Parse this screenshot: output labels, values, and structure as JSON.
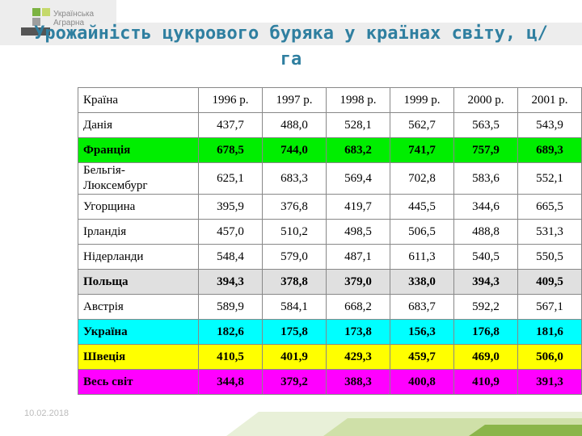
{
  "header": {
    "logo_lines": [
      "Українська",
      "Аграрна"
    ],
    "title": "Урожайність цукрового буряка у країнах світу, ц/га"
  },
  "table": {
    "header": [
      "Країна",
      "1996 р.",
      "1997 р.",
      "1998 р.",
      "1999 р.",
      "2000 р.",
      "2001 р."
    ],
    "rows": [
      {
        "cells": [
          "Данія",
          "437,7",
          "488,0",
          "528,1",
          "562,7",
          "563,5",
          "543,9"
        ]
      },
      {
        "cells": [
          "Франція",
          "678,5",
          "744,0",
          "683,2",
          "741,7",
          "757,9",
          "689,3"
        ],
        "fill": "#00ee00"
      },
      {
        "cells": [
          "Бельгія-\nЛюксембург",
          "625,1",
          "683,3",
          "569,4",
          "702,8",
          "583,6",
          "552,1"
        ]
      },
      {
        "cells": [
          "Угорщина",
          "395,9",
          "376,8",
          "419,7",
          "445,5",
          "344,6",
          "665,5"
        ]
      },
      {
        "cells": [
          "Ірландія",
          "457,0",
          "510,2",
          "498,5",
          "506,5",
          "488,8",
          "531,3"
        ]
      },
      {
        "cells": [
          "Нідерланди",
          "548,4",
          "579,0",
          "487,1",
          "611,3",
          "540,5",
          "550,5"
        ]
      },
      {
        "cells": [
          "Польща",
          "394,3",
          "378,8",
          "379,0",
          "338,0",
          "394,3",
          "409,5"
        ],
        "fill": "#e0e0e0"
      },
      {
        "cells": [
          "Австрія",
          "589,9",
          "584,1",
          "668,2",
          "683,7",
          "592,2",
          "567,1"
        ]
      },
      {
        "cells": [
          "Україна",
          "182,6",
          "175,8",
          "173,8",
          "156,3",
          "176,8",
          "181,6"
        ],
        "fill": "#00ffff"
      },
      {
        "cells": [
          "Швеція",
          "410,5",
          "401,9",
          "429,3",
          "459,7",
          "469,0",
          "506,0"
        ],
        "fill": "#ffff00"
      },
      {
        "cells": [
          "Весь світ",
          "344,8",
          "379,2",
          "388,3",
          "400,8",
          "410,9",
          "391,3"
        ],
        "fill": "#ff00ff"
      }
    ]
  },
  "footer": {
    "date": "10.02.2018"
  }
}
